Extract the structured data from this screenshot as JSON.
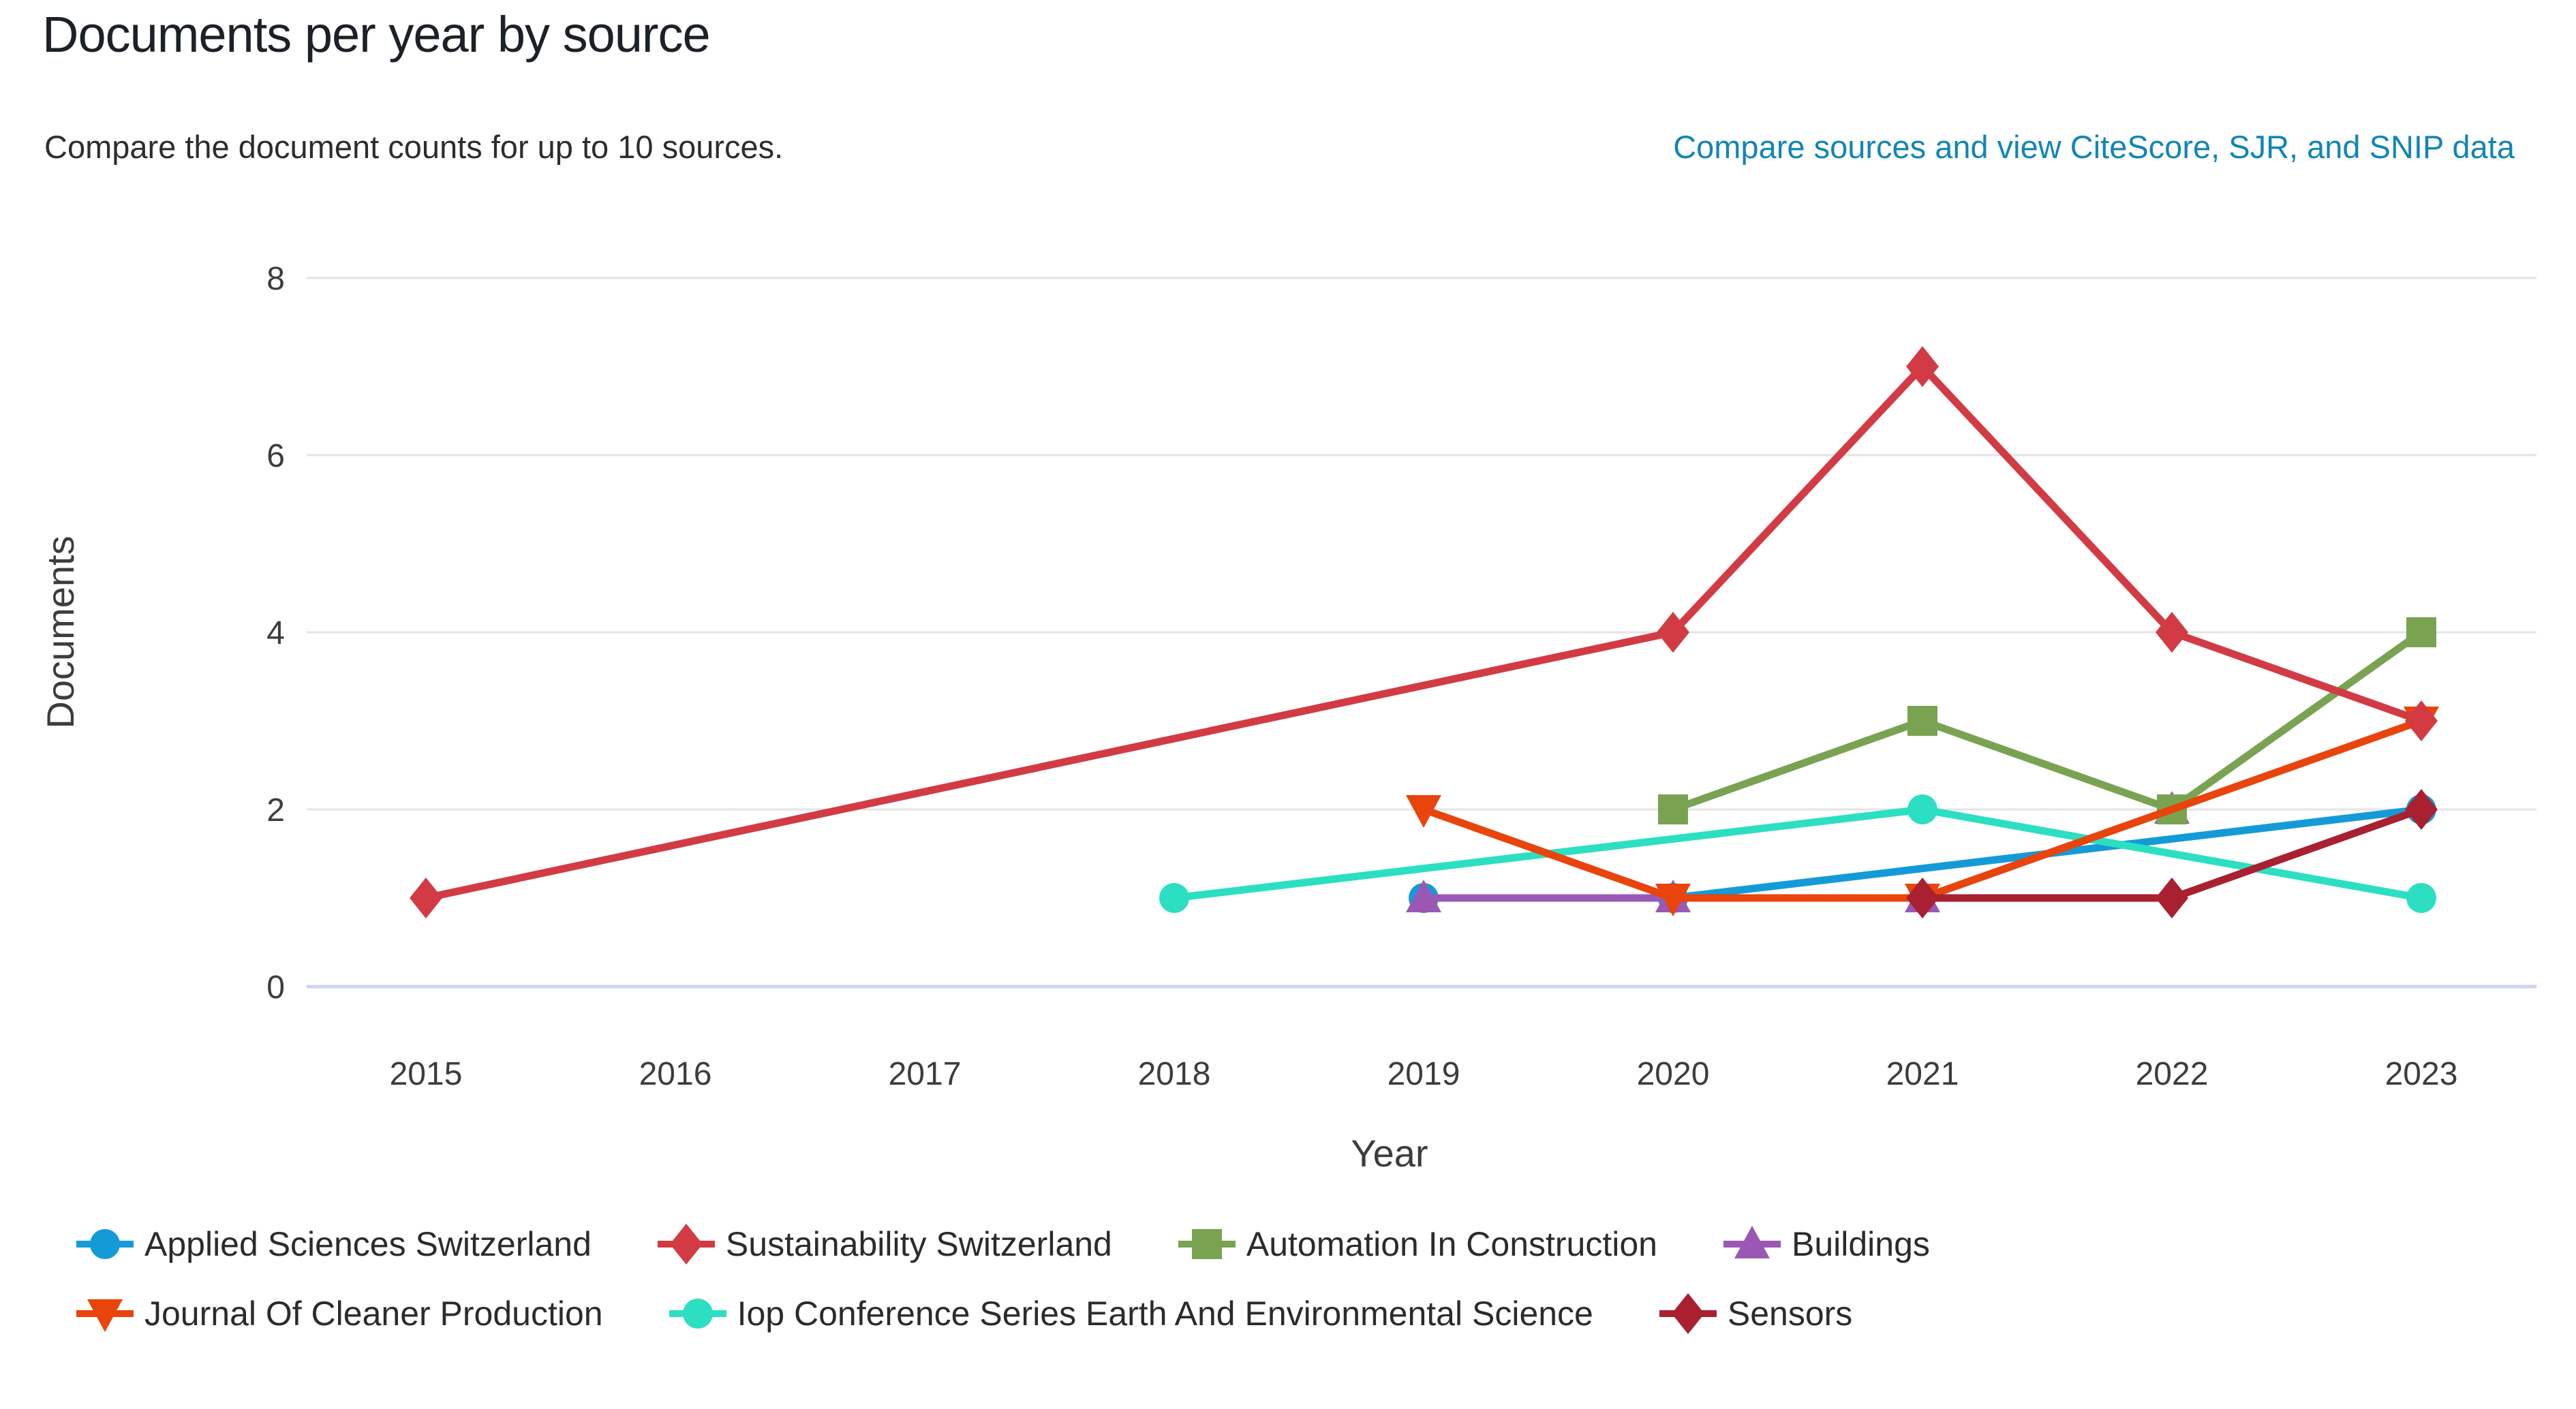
{
  "header": {
    "title": "Documents per year by source",
    "subtitle": "Compare the document counts for up to 10 sources.",
    "link_label": "Compare sources and view CiteScore, SJR, and SNIP data",
    "link_color": "#1285b5"
  },
  "chart_data": {
    "type": "line",
    "title": "Documents per year by source",
    "xlabel": "Year",
    "ylabel": "Documents",
    "x_ticks": [
      2015,
      2016,
      2017,
      2018,
      2019,
      2020,
      2021,
      2022,
      2023
    ],
    "y_ticks": [
      0,
      2,
      4,
      6,
      8
    ],
    "xlim": [
      2015,
      2023
    ],
    "ylim": [
      0,
      8
    ],
    "grid": true,
    "grid_color": "#e4e4e6",
    "baseline_color": "#ccd4ef",
    "legend_position": "bottom",
    "legend_rows": [
      [
        0,
        1,
        2,
        3
      ],
      [
        4,
        5,
        6
      ]
    ],
    "draw_order": [
      0,
      3,
      5,
      2,
      4,
      1,
      6
    ],
    "series": [
      {
        "name": "Applied Sciences Switzerland",
        "color": "#149bd7",
        "marker": "circle",
        "points": [
          [
            2019,
            1
          ],
          [
            2020,
            1
          ],
          [
            2023,
            2
          ]
        ]
      },
      {
        "name": "Sustainability Switzerland",
        "color": "#d23b44",
        "marker": "diamond",
        "points": [
          [
            2015,
            1
          ],
          [
            2020,
            4
          ],
          [
            2021,
            7
          ],
          [
            2022,
            4
          ],
          [
            2023,
            3
          ]
        ]
      },
      {
        "name": "Automation In Construction",
        "color": "#79a351",
        "marker": "square",
        "points": [
          [
            2020,
            2
          ],
          [
            2021,
            3
          ],
          [
            2022,
            2
          ],
          [
            2023,
            4
          ]
        ]
      },
      {
        "name": "Buildings",
        "color": "#9a58b4",
        "marker": "triangle-up",
        "points": [
          [
            2019,
            1
          ],
          [
            2020,
            1
          ],
          [
            2021,
            1
          ],
          [
            2022,
            2
          ]
        ]
      },
      {
        "name": "Journal Of Cleaner Production",
        "color": "#e8440c",
        "marker": "triangle-down",
        "points": [
          [
            2019,
            2
          ],
          [
            2020,
            1
          ],
          [
            2021,
            1
          ],
          [
            2023,
            3
          ]
        ]
      },
      {
        "name": "Iop Conference Series Earth And Environmental Science",
        "color": "#2cdfc2",
        "marker": "circle",
        "points": [
          [
            2018,
            1
          ],
          [
            2021,
            2
          ],
          [
            2023,
            1
          ]
        ]
      },
      {
        "name": "Sensors",
        "color": "#a92031",
        "marker": "diamond",
        "points": [
          [
            2021,
            1
          ],
          [
            2022,
            1
          ],
          [
            2023,
            2
          ]
        ]
      }
    ]
  }
}
